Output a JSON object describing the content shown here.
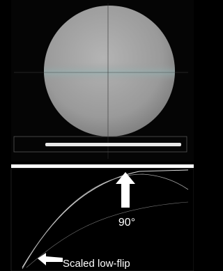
{
  "labels": {
    "angle": "90°",
    "caption": "Scaled low-flip"
  }
}
